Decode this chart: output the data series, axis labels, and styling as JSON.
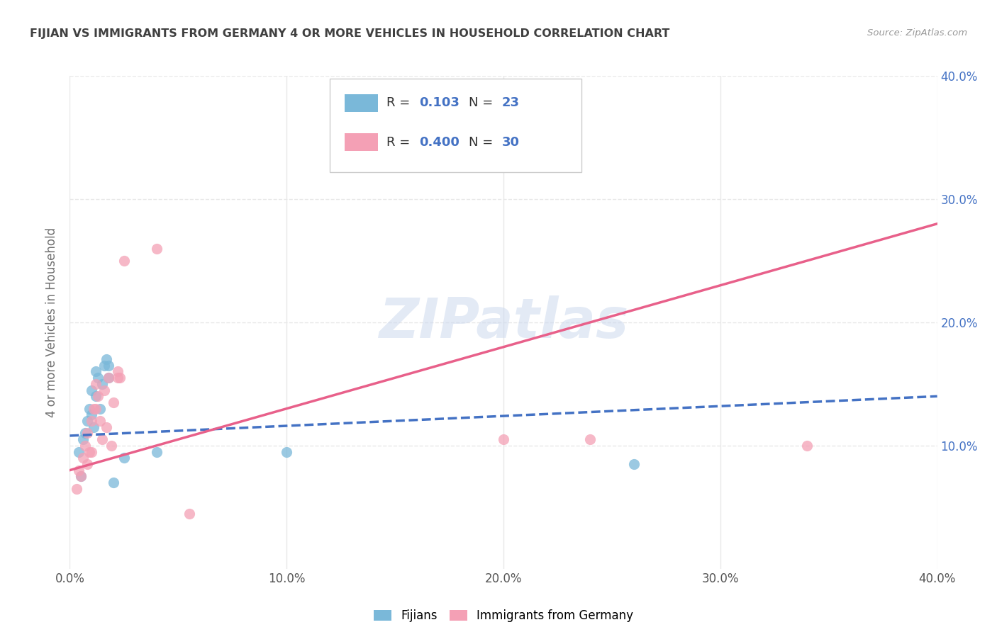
{
  "title": "FIJIAN VS IMMIGRANTS FROM GERMANY 4 OR MORE VEHICLES IN HOUSEHOLD CORRELATION CHART",
  "source": "Source: ZipAtlas.com",
  "ylabel": "4 or more Vehicles in Household",
  "xlim": [
    0.0,
    0.4
  ],
  "ylim": [
    0.0,
    0.4
  ],
  "xtick_vals": [
    0.0,
    0.1,
    0.2,
    0.3,
    0.4
  ],
  "ytick_vals": [
    0.1,
    0.2,
    0.3,
    0.4
  ],
  "watermark": "ZIPatlas",
  "fijian_color": "#7ab8d9",
  "germany_color": "#f4a0b5",
  "fijian_line_color": "#4472c4",
  "germany_line_color": "#e8608a",
  "R_fijian": 0.103,
  "N_fijian": 23,
  "R_germany": 0.4,
  "N_germany": 30,
  "fijian_scatter": [
    [
      0.004,
      0.095
    ],
    [
      0.005,
      0.075
    ],
    [
      0.006,
      0.105
    ],
    [
      0.007,
      0.11
    ],
    [
      0.008,
      0.12
    ],
    [
      0.009,
      0.13
    ],
    [
      0.01,
      0.125
    ],
    [
      0.01,
      0.145
    ],
    [
      0.011,
      0.115
    ],
    [
      0.012,
      0.14
    ],
    [
      0.012,
      0.16
    ],
    [
      0.013,
      0.155
    ],
    [
      0.014,
      0.13
    ],
    [
      0.015,
      0.15
    ],
    [
      0.016,
      0.165
    ],
    [
      0.017,
      0.17
    ],
    [
      0.018,
      0.155
    ],
    [
      0.018,
      0.165
    ],
    [
      0.02,
      0.07
    ],
    [
      0.025,
      0.09
    ],
    [
      0.04,
      0.095
    ],
    [
      0.1,
      0.095
    ],
    [
      0.26,
      0.085
    ]
  ],
  "germany_scatter": [
    [
      0.003,
      0.065
    ],
    [
      0.004,
      0.08
    ],
    [
      0.005,
      0.075
    ],
    [
      0.006,
      0.09
    ],
    [
      0.007,
      0.1
    ],
    [
      0.008,
      0.085
    ],
    [
      0.008,
      0.11
    ],
    [
      0.009,
      0.095
    ],
    [
      0.01,
      0.095
    ],
    [
      0.01,
      0.12
    ],
    [
      0.011,
      0.13
    ],
    [
      0.012,
      0.13
    ],
    [
      0.012,
      0.15
    ],
    [
      0.013,
      0.14
    ],
    [
      0.014,
      0.12
    ],
    [
      0.015,
      0.105
    ],
    [
      0.016,
      0.145
    ],
    [
      0.017,
      0.115
    ],
    [
      0.018,
      0.155
    ],
    [
      0.019,
      0.1
    ],
    [
      0.02,
      0.135
    ],
    [
      0.022,
      0.16
    ],
    [
      0.022,
      0.155
    ],
    [
      0.023,
      0.155
    ],
    [
      0.025,
      0.25
    ],
    [
      0.04,
      0.26
    ],
    [
      0.055,
      0.045
    ],
    [
      0.2,
      0.105
    ],
    [
      0.24,
      0.105
    ],
    [
      0.34,
      0.1
    ]
  ],
  "fijian_line": [
    [
      0.0,
      0.108
    ],
    [
      0.4,
      0.14
    ]
  ],
  "germany_line": [
    [
      0.0,
      0.08
    ],
    [
      0.4,
      0.28
    ]
  ],
  "background_color": "#ffffff",
  "grid_color": "#e8e8e8",
  "title_color": "#404040",
  "axis_label_color": "#707070",
  "R_label_color": "#4472c4",
  "right_tick_color": "#4472c4"
}
